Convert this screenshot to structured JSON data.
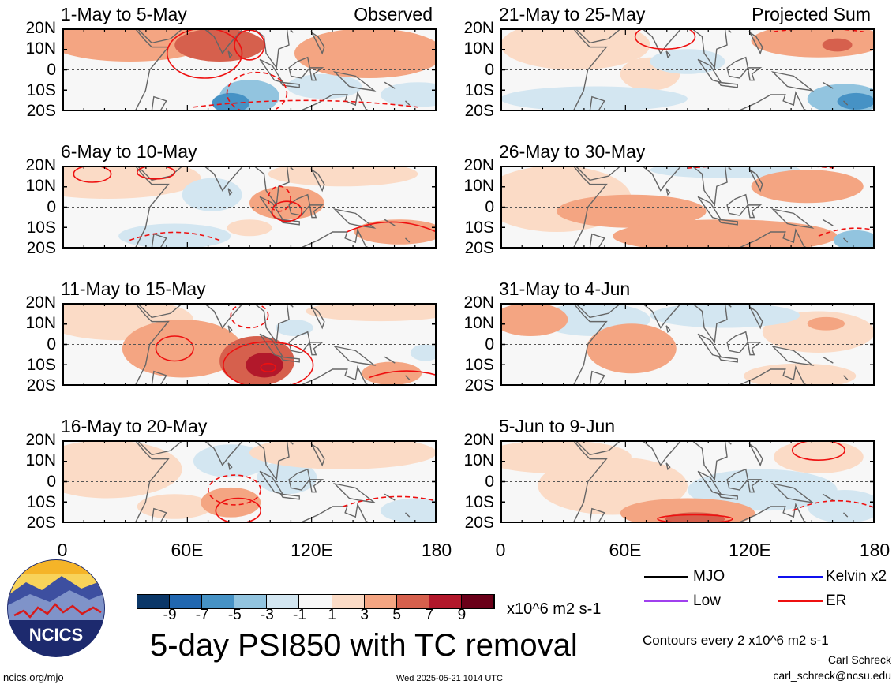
{
  "panels": [
    {
      "title": "1-May to 5-May",
      "tag": "Observed",
      "col": 0,
      "row": 0
    },
    {
      "title": "6-May to 10-May",
      "tag": "",
      "col": 0,
      "row": 1
    },
    {
      "title": "11-May to 15-May",
      "tag": "",
      "col": 0,
      "row": 2
    },
    {
      "title": "16-May to 20-May",
      "tag": "",
      "col": 0,
      "row": 3
    },
    {
      "title": "21-May to 25-May",
      "tag": "Projected Sum",
      "col": 1,
      "row": 0
    },
    {
      "title": "26-May to 30-May",
      "tag": "",
      "col": 1,
      "row": 1
    },
    {
      "title": "31-May to 4-Jun",
      "tag": "",
      "col": 1,
      "row": 2
    },
    {
      "title": "5-Jun to 9-Jun",
      "tag": "",
      "col": 1,
      "row": 3
    }
  ],
  "lat_labels": [
    "20N",
    "10N",
    "0",
    "10S",
    "20S"
  ],
  "lon_labels": [
    "0",
    "60E",
    "120E",
    "180"
  ],
  "colorbar": {
    "colors": [
      "#0b3768",
      "#2167b0",
      "#4692c5",
      "#92c4df",
      "#d3e6f1",
      "#f7f7f7",
      "#fbdbc6",
      "#f4a582",
      "#d6604d",
      "#b2182b",
      "#6a0019"
    ],
    "labels": [
      "-9",
      "-7",
      "-5",
      "-3",
      "-1",
      "1",
      "3",
      "5",
      "7",
      "9"
    ],
    "units": "x10^6 m2 s-1"
  },
  "legend": [
    {
      "name": "MJO",
      "color": "#000000"
    },
    {
      "name": "Kelvin x2",
      "color": "#1010ee"
    },
    {
      "name": "Low",
      "color": "#a040ee"
    },
    {
      "name": "ER",
      "color": "#ee1010"
    }
  ],
  "main_title": "5-day PSI850 with TC removal",
  "contour_note": "Contours every 2 x10^6 m2 s-1",
  "author": "Carl Schreck",
  "email": "carl_schreck@ncsu.edu",
  "site": "ncics.org/mjo",
  "timestamp": "Wed 2025-05-21 1014 UTC",
  "logo": {
    "text": "NCICS"
  }
}
